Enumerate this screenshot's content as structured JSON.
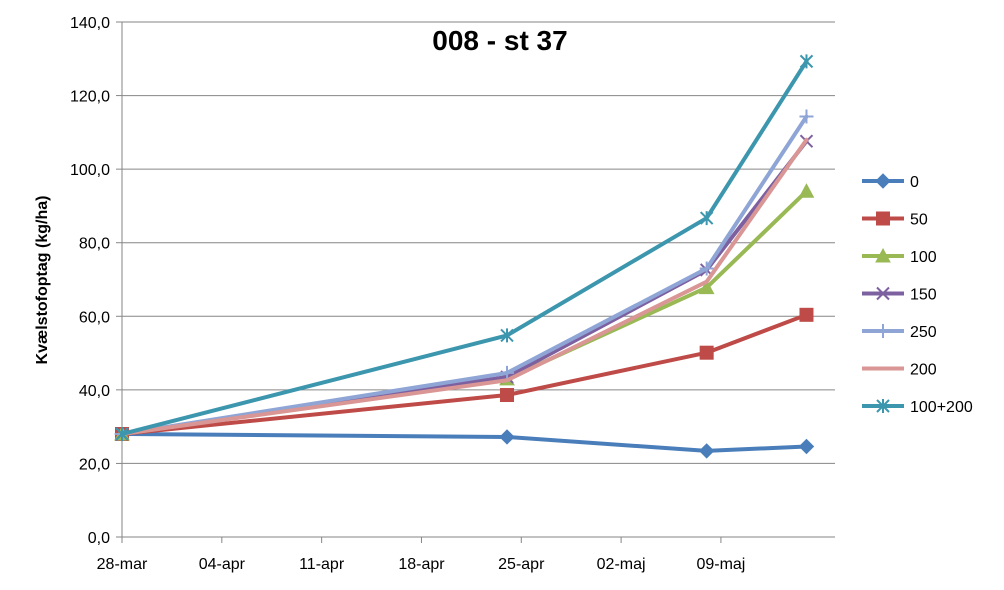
{
  "chart_data": {
    "type": "line",
    "title": "008 - st 37",
    "xlabel": "",
    "ylabel": "Kvælstofoptag (kg/ha)",
    "ylim": [
      0,
      140
    ],
    "yticks": [
      "0,0",
      "20,0",
      "40,0",
      "60,0",
      "80,0",
      "100,0",
      "120,0",
      "140,0"
    ],
    "xlim": [
      "2011-03-28",
      "2011-05-17"
    ],
    "xticks": [
      {
        "date": "2011-03-28",
        "label": "28-mar"
      },
      {
        "date": "2011-04-04",
        "label": "04-apr"
      },
      {
        "date": "2011-04-11",
        "label": "11-apr"
      },
      {
        "date": "2011-04-18",
        "label": "18-apr"
      },
      {
        "date": "2011-04-25",
        "label": "25-apr"
      },
      {
        "date": "2011-05-02",
        "label": "02-maj"
      },
      {
        "date": "2011-05-09",
        "label": "09-maj"
      }
    ],
    "grid": "horizontal",
    "legend_position": "right",
    "x": [
      "2011-03-28",
      "2011-04-24",
      "2011-05-08",
      "2011-05-15"
    ],
    "series": [
      {
        "name": "0",
        "color": "#4A7EBB",
        "marker": "diamond",
        "values": [
          28.0,
          27.2,
          23.4,
          24.6
        ]
      },
      {
        "name": "50",
        "color": "#BE4B48",
        "marker": "square",
        "values": [
          28.0,
          38.6,
          50.1,
          60.4
        ]
      },
      {
        "name": "100",
        "color": "#98B954",
        "marker": "triangle",
        "values": [
          28.0,
          43.0,
          67.8,
          94.0
        ]
      },
      {
        "name": "150",
        "color": "#7D60A0",
        "marker": "x",
        "values": [
          28.0,
          43.5,
          72.6,
          107.6
        ]
      },
      {
        "name": "250",
        "color": "#8EA5D5",
        "marker": "plus",
        "values": [
          28.0,
          44.6,
          73.0,
          114.3
        ]
      },
      {
        "name": "200",
        "color": "#D99694",
        "marker": "none",
        "values": [
          28.0,
          42.6,
          69.4,
          108.0
        ]
      },
      {
        "name": "100+200",
        "color": "#3C96AE",
        "marker": "star",
        "values": [
          28.0,
          54.8,
          86.7,
          129.3
        ]
      }
    ]
  }
}
